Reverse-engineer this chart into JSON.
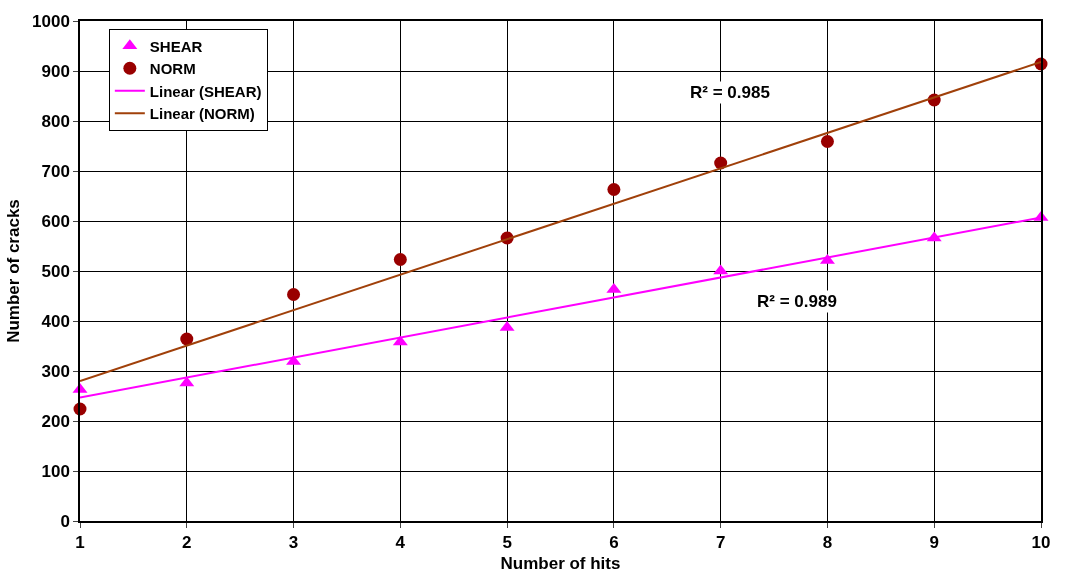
{
  "chart_data": {
    "type": "scatter",
    "xlabel": "Number of hits",
    "ylabel": "Number of cracks",
    "xlim": [
      1,
      10
    ],
    "xticks": [
      1,
      2,
      3,
      4,
      5,
      6,
      7,
      8,
      9,
      10
    ],
    "ylim": [
      0,
      1000
    ],
    "yticks": [
      0,
      100,
      200,
      300,
      400,
      500,
      600,
      700,
      800,
      900,
      1000
    ],
    "grid": true,
    "legend": "top left",
    "series": [
      {
        "name": "SHEAR",
        "marker": "triangle",
        "color": "#ff00ff",
        "x": [
          1,
          2,
          3,
          4,
          5,
          6,
          7,
          8,
          9,
          10
        ],
        "values": [
          263,
          276,
          319,
          358,
          387,
          463,
          500,
          521,
          566,
          607
        ]
      },
      {
        "name": "NORM",
        "marker": "circle",
        "color": "#990000",
        "x": [
          1,
          2,
          3,
          4,
          5,
          6,
          7,
          8,
          9,
          10
        ],
        "values": [
          224,
          364,
          453,
          523,
          566,
          663,
          716,
          759,
          842,
          914
        ]
      },
      {
        "name": "Linear (SHEAR)",
        "type": "line",
        "marker": "none",
        "color": "#ff00ff",
        "x": [
          1,
          10
        ],
        "values": [
          247,
          607
        ]
      },
      {
        "name": "Linear (NORM)",
        "type": "line",
        "marker": "none",
        "color": "#a0400a",
        "x": [
          1,
          10
        ],
        "values": [
          280,
          918
        ]
      }
    ],
    "annotations": [
      "R² = 0.985",
      "R² = 0.989"
    ]
  }
}
